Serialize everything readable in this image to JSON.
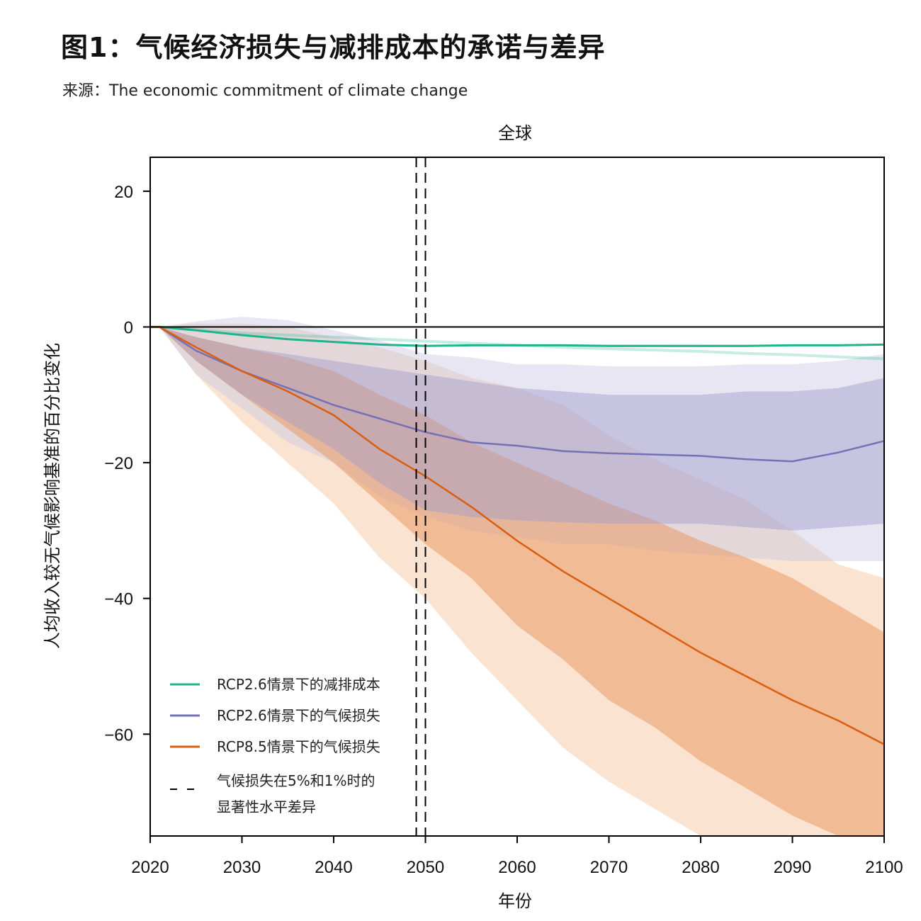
{
  "figure": {
    "title": "图1：气候经济损失与减排成本的承诺与差异",
    "source": "来源：The economic commitment of climate change"
  },
  "chart_data": {
    "type": "line",
    "title": "全球",
    "xlabel": "年份",
    "ylabel": "人均收入较无气候影响基准的百分比变化",
    "xlim": [
      2020,
      2100
    ],
    "ylim": [
      -75,
      25
    ],
    "xticks": [
      2020,
      2030,
      2040,
      2050,
      2060,
      2070,
      2080,
      2090,
      2100
    ],
    "yticks": [
      20,
      0,
      -20,
      -40,
      -60
    ],
    "ytick_labels": [
      "20",
      "0",
      "−20",
      "−40",
      "−60"
    ],
    "zero_line": 0,
    "vlines": [
      2049,
      2050
    ],
    "x": [
      2020,
      2021,
      2025,
      2030,
      2035,
      2040,
      2045,
      2050,
      2055,
      2060,
      2065,
      2070,
      2075,
      2080,
      2085,
      2090,
      2095,
      2100
    ],
    "series": [
      {
        "name": "RCP2.6情景下的减排成本",
        "color": "#1fb48c",
        "values": [
          0,
          0,
          -0.5,
          -1.2,
          -1.8,
          -2.2,
          -2.6,
          -2.8,
          -2.7,
          -2.7,
          -2.7,
          -2.8,
          -2.8,
          -2.8,
          -2.8,
          -2.7,
          -2.7,
          -2.6
        ],
        "faint_values": [
          0,
          0,
          -0.4,
          -0.9,
          -1.2,
          -1.5,
          -1.8,
          -2.1,
          -2.4,
          -2.7,
          -3.0,
          -3.2,
          -3.4,
          -3.6,
          -3.9,
          -4.1,
          -4.4,
          -4.7
        ]
      },
      {
        "name": "RCP2.6情景下的气候损失",
        "color": "#7571b5",
        "values": [
          0,
          0,
          -3.5,
          -6.5,
          -9,
          -11.5,
          -13.5,
          -15.5,
          -17,
          -17.5,
          -18.3,
          -18.6,
          -18.8,
          -19,
          -19.5,
          -19.8,
          -18.5,
          -16.8
        ],
        "band_inner_upper": [
          0,
          0,
          -1.5,
          -3,
          -4,
          -5,
          -6,
          -7,
          -8,
          -9,
          -9.5,
          -10,
          -10,
          -10,
          -9.5,
          -9.5,
          -9,
          -7.5
        ],
        "band_inner_lower": [
          0,
          0,
          -5,
          -10,
          -14,
          -18,
          -23,
          -27,
          -28,
          -28.5,
          -28.8,
          -29,
          -29,
          -29,
          -29.5,
          -30,
          -29.5,
          -29
        ],
        "band_outer_upper": [
          0,
          0,
          0.8,
          1.5,
          1,
          -0.5,
          -2,
          -4,
          -4.5,
          -5.5,
          -5.5,
          -5.8,
          -5.8,
          -5.8,
          -5.5,
          -5.5,
          -5,
          -4
        ],
        "band_outer_lower": [
          0,
          0,
          -7,
          -12,
          -17,
          -20,
          -25,
          -28,
          -30,
          -31,
          -32,
          -32,
          -33,
          -33.5,
          -34,
          -34.5,
          -34.5,
          -34.5
        ]
      },
      {
        "name": "RCP8.5情景下的气候损失",
        "color": "#d95f0e",
        "values": [
          0,
          0,
          -3,
          -6.5,
          -9.5,
          -13,
          -18,
          -22,
          -26.5,
          -31.5,
          -36,
          -40,
          -44,
          -48,
          -51.5,
          -55,
          -58,
          -61.5
        ],
        "band_inner_upper": [
          0,
          0,
          -1.5,
          -3,
          -4.5,
          -6.5,
          -10,
          -13,
          -17,
          -20,
          -23,
          -26,
          -28.5,
          -31.5,
          -34,
          -37,
          -41,
          -45
        ],
        "band_inner_lower": [
          0,
          0,
          -5,
          -10,
          -15,
          -20,
          -26,
          -32,
          -37,
          -44,
          -49,
          -55,
          -59,
          -64,
          -68,
          -72,
          -75,
          -75
        ],
        "band_outer_upper": [
          0,
          0,
          0.5,
          0.5,
          0,
          -1.5,
          -3,
          -5,
          -7.5,
          -9,
          -11.5,
          -16,
          -19.5,
          -22.5,
          -25.5,
          -30,
          -35,
          -37
        ],
        "band_outer_lower": [
          0,
          0,
          -7,
          -14,
          -20,
          -26,
          -34,
          -40,
          -48,
          -55,
          -62,
          -67,
          -71,
          -75,
          -75,
          -75,
          -75,
          -75
        ]
      }
    ],
    "legend": {
      "location": "lower-left",
      "dashed_label_line1": "气候损失在5%和1%时的",
      "dashed_label_line2": "显著性水平差异"
    }
  }
}
